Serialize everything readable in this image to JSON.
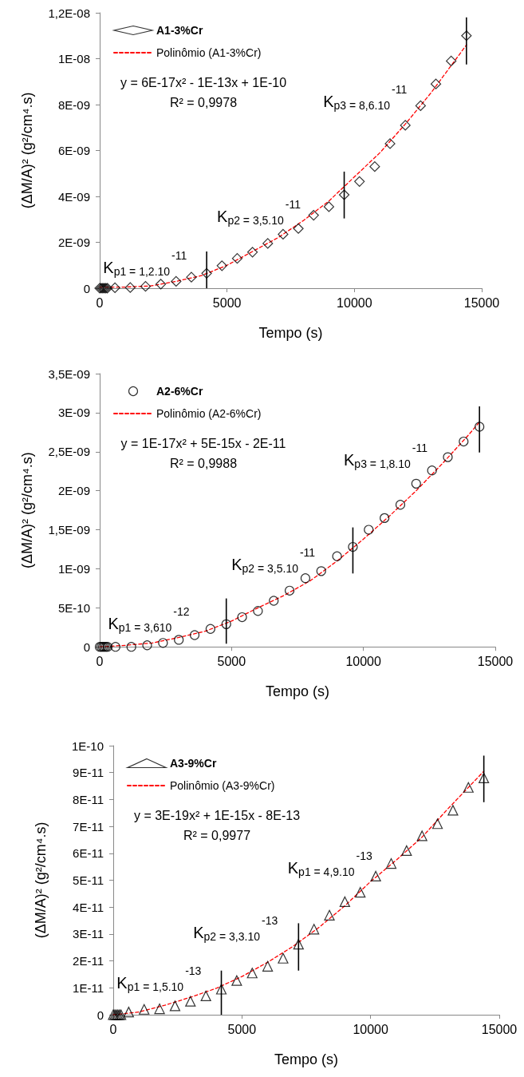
{
  "chart_data": [
    {
      "type": "scatter",
      "xlabel": "Tempo (s)",
      "ylabel": "(ΔM/A)² (g²/cm⁴.s)",
      "xlim": [
        0,
        15000
      ],
      "xticks": [
        0,
        5000,
        10000,
        15000
      ],
      "ylim": [
        0,
        1.2e-08
      ],
      "yticks": [
        {
          "value": 0,
          "label": "0"
        },
        {
          "value": 2e-09,
          "label": "2E-09"
        },
        {
          "value": 4e-09,
          "label": "4E-09"
        },
        {
          "value": 6e-09,
          "label": "6E-09"
        },
        {
          "value": 8e-09,
          "label": "8E-09"
        },
        {
          "value": 1e-08,
          "label": "1E-08"
        },
        {
          "value": 1.2e-08,
          "label": "1,2E-08"
        }
      ],
      "grid": false,
      "legend": "top left",
      "series": [
        {
          "name": "A1-3%Cr",
          "type": "scatter",
          "marker": "diamond",
          "color": "#000000",
          "x": [
            0,
            60,
            120,
            180,
            240,
            300,
            600,
            1200,
            1800,
            2400,
            3000,
            3600,
            4200,
            4800,
            5400,
            6000,
            6600,
            7200,
            7800,
            8400,
            9000,
            9600,
            10200,
            10800,
            11400,
            12000,
            12600,
            13200,
            13800,
            14400
          ],
          "values": [
            0,
            0,
            0,
            0,
            0,
            0,
            2e-11,
            3e-11,
            8e-11,
            1.8e-10,
            3e-10,
            4.8e-10,
            6.5e-10,
            9.8e-10,
            1.3e-09,
            1.57e-09,
            1.95e-09,
            2.35e-09,
            2.6e-09,
            3.18e-09,
            3.55e-09,
            4.07e-09,
            4.65e-09,
            5.3e-09,
            6.3e-09,
            7.1e-09,
            7.95e-09,
            8.9e-09,
            9.9e-09,
            1.1e-08
          ],
          "errors": [
            null,
            null,
            null,
            null,
            null,
            null,
            null,
            null,
            null,
            null,
            null,
            null,
            [
              0,
              1.6e-09
            ],
            null,
            null,
            null,
            null,
            null,
            null,
            null,
            null,
            [
              3.04e-09,
              5.08e-09
            ],
            null,
            null,
            null,
            null,
            null,
            null,
            null,
            [
              9.75e-09,
              1.18e-08
            ]
          ]
        },
        {
          "name": "Polinômio (A1-3%Cr)",
          "type": "line",
          "marker": "none",
          "line_style": "dashed",
          "color": "#ff0000",
          "x": [
            0,
            1000,
            2000,
            3000,
            4000,
            5000,
            6000,
            7000,
            8000,
            9000,
            10000,
            11000,
            12000,
            13000,
            14000,
            14400
          ],
          "values": [
            5e-11,
            5e-11,
            1e-10,
            3e-10,
            5.5e-10,
            1e-09,
            1.6e-09,
            2.2e-09,
            2.95e-09,
            3.8e-09,
            4.85e-09,
            5.9e-09,
            7.15e-09,
            8.5e-09,
            1e-08,
            1.06e-08
          ]
        }
      ],
      "annotations": [
        "y = 6E-17x² - 1E-13x + 1E-10",
        "R² = 0,9978",
        "K$_{p1 = 1,2.10}$$^{-11}$",
        "K$_{p2 = 3,5.10}$$^{-11}$",
        "K$_{p3 = 8,6.10}$$^{-11}$"
      ]
    },
    {
      "type": "scatter",
      "xlabel": "Tempo (s)",
      "ylabel": "(ΔM/A)² (g²/cm⁴.s)",
      "xlim": [
        0,
        15000
      ],
      "xticks": [
        0,
        5000,
        10000,
        15000
      ],
      "ylim": [
        0,
        3.5e-09
      ],
      "yticks": [
        {
          "value": 0,
          "label": "0"
        },
        {
          "value": 5e-10,
          "label": "5E-10"
        },
        {
          "value": 1e-09,
          "label": "1E-09"
        },
        {
          "value": 1.5e-09,
          "label": "1,5E-09"
        },
        {
          "value": 2e-09,
          "label": "2E-09"
        },
        {
          "value": 2.5e-09,
          "label": "2,5E-09"
        },
        {
          "value": 3e-09,
          "label": "3E-09"
        },
        {
          "value": 3.5e-09,
          "label": "3,5E-09"
        }
      ],
      "grid": false,
      "legend": "top left",
      "series": [
        {
          "name": "A2-6%Cr",
          "type": "scatter",
          "marker": "circle",
          "color": "#000000",
          "x": [
            0,
            60,
            120,
            180,
            240,
            300,
            600,
            1200,
            1800,
            2400,
            3000,
            3600,
            4200,
            4800,
            5400,
            6000,
            6600,
            7200,
            7800,
            8400,
            9000,
            9600,
            10200,
            10800,
            11400,
            12000,
            12600,
            13200,
            13800,
            14400
          ],
          "values": [
            0,
            0,
            0,
            0,
            0,
            0,
            0,
            0,
            2e-11,
            5e-11,
            9e-11,
            1.5e-10,
            2.3e-10,
            2.9e-10,
            3.8e-10,
            4.6e-10,
            5.9e-10,
            7.2e-10,
            8.8e-10,
            9.7e-10,
            1.16e-09,
            1.28e-09,
            1.5e-09,
            1.65e-09,
            1.82e-09,
            2.09e-09,
            2.26e-09,
            2.43e-09,
            2.63e-09,
            2.82e-09
          ],
          "errors": [
            null,
            null,
            null,
            null,
            null,
            null,
            null,
            null,
            null,
            null,
            null,
            null,
            null,
            [
              4e-11,
              6.2e-10
            ],
            null,
            null,
            null,
            null,
            null,
            null,
            null,
            [
              9.4e-10,
              1.53e-09
            ],
            null,
            null,
            null,
            null,
            null,
            null,
            null,
            [
              2.49e-09,
              3.08e-09
            ]
          ]
        },
        {
          "name": "Polinômio (A2-6%Cr)",
          "type": "line",
          "marker": "none",
          "line_style": "dashed",
          "color": "#ff0000",
          "x": [
            0,
            1000,
            2000,
            3000,
            4000,
            5000,
            6000,
            7000,
            8000,
            9000,
            10000,
            11000,
            12000,
            13000,
            14000,
            14400
          ],
          "values": [
            0,
            2e-11,
            5e-11,
            1.2e-10,
            2e-10,
            3.3e-10,
            5e-10,
            6.6e-10,
            8.5e-10,
            1.1e-09,
            1.38e-09,
            1.68e-09,
            2e-09,
            2.35e-09,
            2.72e-09,
            2.88e-09
          ]
        }
      ],
      "annotations": [
        "y = 1E-17x² + 5E-15x - 2E-11",
        "R² = 0,9988",
        "K$_{p1 = 3,610}$$^{-12}$",
        "K$_{p2 = 3,5.10}$$^{-11}$",
        "K$_{p3 = 1,8.10}$$^{-11}$"
      ]
    },
    {
      "type": "scatter",
      "xlabel": "Tempo (s)",
      "ylabel": "(ΔM/A)² (g²/cm⁴.s)",
      "xlim": [
        0,
        15000
      ],
      "xticks": [
        0,
        5000,
        10000,
        15000
      ],
      "ylim": [
        0,
        1e-10
      ],
      "yticks": [
        {
          "value": 0,
          "label": "0"
        },
        {
          "value": 1e-11,
          "label": "1E-11"
        },
        {
          "value": 2e-11,
          "label": "2E-11"
        },
        {
          "value": 3e-11,
          "label": "3E-11"
        },
        {
          "value": 4e-11,
          "label": "4E-11"
        },
        {
          "value": 5e-11,
          "label": "5E-11"
        },
        {
          "value": 6e-11,
          "label": "6E-11"
        },
        {
          "value": 7e-11,
          "label": "7E-11"
        },
        {
          "value": 8e-11,
          "label": "8E-11"
        },
        {
          "value": 9e-11,
          "label": "9E-11"
        },
        {
          "value": 1e-10,
          "label": "1E-10"
        }
      ],
      "grid": false,
      "legend": "top left",
      "series": [
        {
          "name": "A3-9%Cr",
          "type": "scatter",
          "marker": "triangle",
          "color": "#000000",
          "x": [
            0,
            60,
            120,
            180,
            240,
            300,
            600,
            1200,
            1800,
            2400,
            3000,
            3600,
            4200,
            4800,
            5400,
            6000,
            6600,
            7200,
            7800,
            8400,
            9000,
            9600,
            10200,
            10800,
            11400,
            12000,
            12600,
            13200,
            13800,
            14400
          ],
          "values": [
            0,
            0,
            0,
            0,
            0,
            0,
            1e-12,
            2e-12,
            2.2e-12,
            3.3e-12,
            5e-12,
            7e-12,
            9.5e-12,
            1.27e-11,
            1.55e-11,
            1.8e-11,
            2.1e-11,
            2.62e-11,
            3.18e-11,
            3.7e-11,
            4.2e-11,
            4.55e-11,
            5.15e-11,
            5.62e-11,
            6.1e-11,
            6.65e-11,
            7.1e-11,
            7.6e-11,
            8.45e-11,
            8.8e-11
          ],
          "errors": [
            null,
            null,
            null,
            null,
            null,
            null,
            null,
            null,
            null,
            null,
            null,
            null,
            [
              0,
              1.64e-11
            ],
            null,
            null,
            null,
            null,
            [
              1.64e-11,
              3.4e-11
            ],
            null,
            null,
            null,
            null,
            null,
            null,
            null,
            null,
            null,
            null,
            null,
            [
              7.9e-11,
              9.63e-11
            ]
          ]
        },
        {
          "name": "Polinômio (A3-9%Cr)",
          "type": "line",
          "marker": "none",
          "line_style": "dashed",
          "color": "#ff0000",
          "x": [
            0,
            1000,
            2000,
            3000,
            4000,
            5000,
            6000,
            7000,
            8000,
            9000,
            10000,
            11000,
            12000,
            13000,
            14000,
            14400
          ],
          "values": [
            0,
            1e-12,
            3.5e-12,
            6.5e-12,
            9.8e-12,
            1.42e-11,
            1.95e-11,
            2.55e-11,
            3.25e-11,
            4.05e-11,
            4.95e-11,
            5.75e-11,
            6.6e-11,
            7.65e-11,
            8.65e-11,
            9.05e-11
          ]
        }
      ],
      "annotations": [
        "y = 3E-19x² + 1E-15x - 8E-13",
        "R² = 0,9977",
        "K$_{p1 = 1,5.10}$$^{-13}$",
        "K$_{p2 = 3,3.10}$$^{-13}$",
        "K$_{p1 = 4,9.10}$$^{-13}$"
      ]
    }
  ]
}
